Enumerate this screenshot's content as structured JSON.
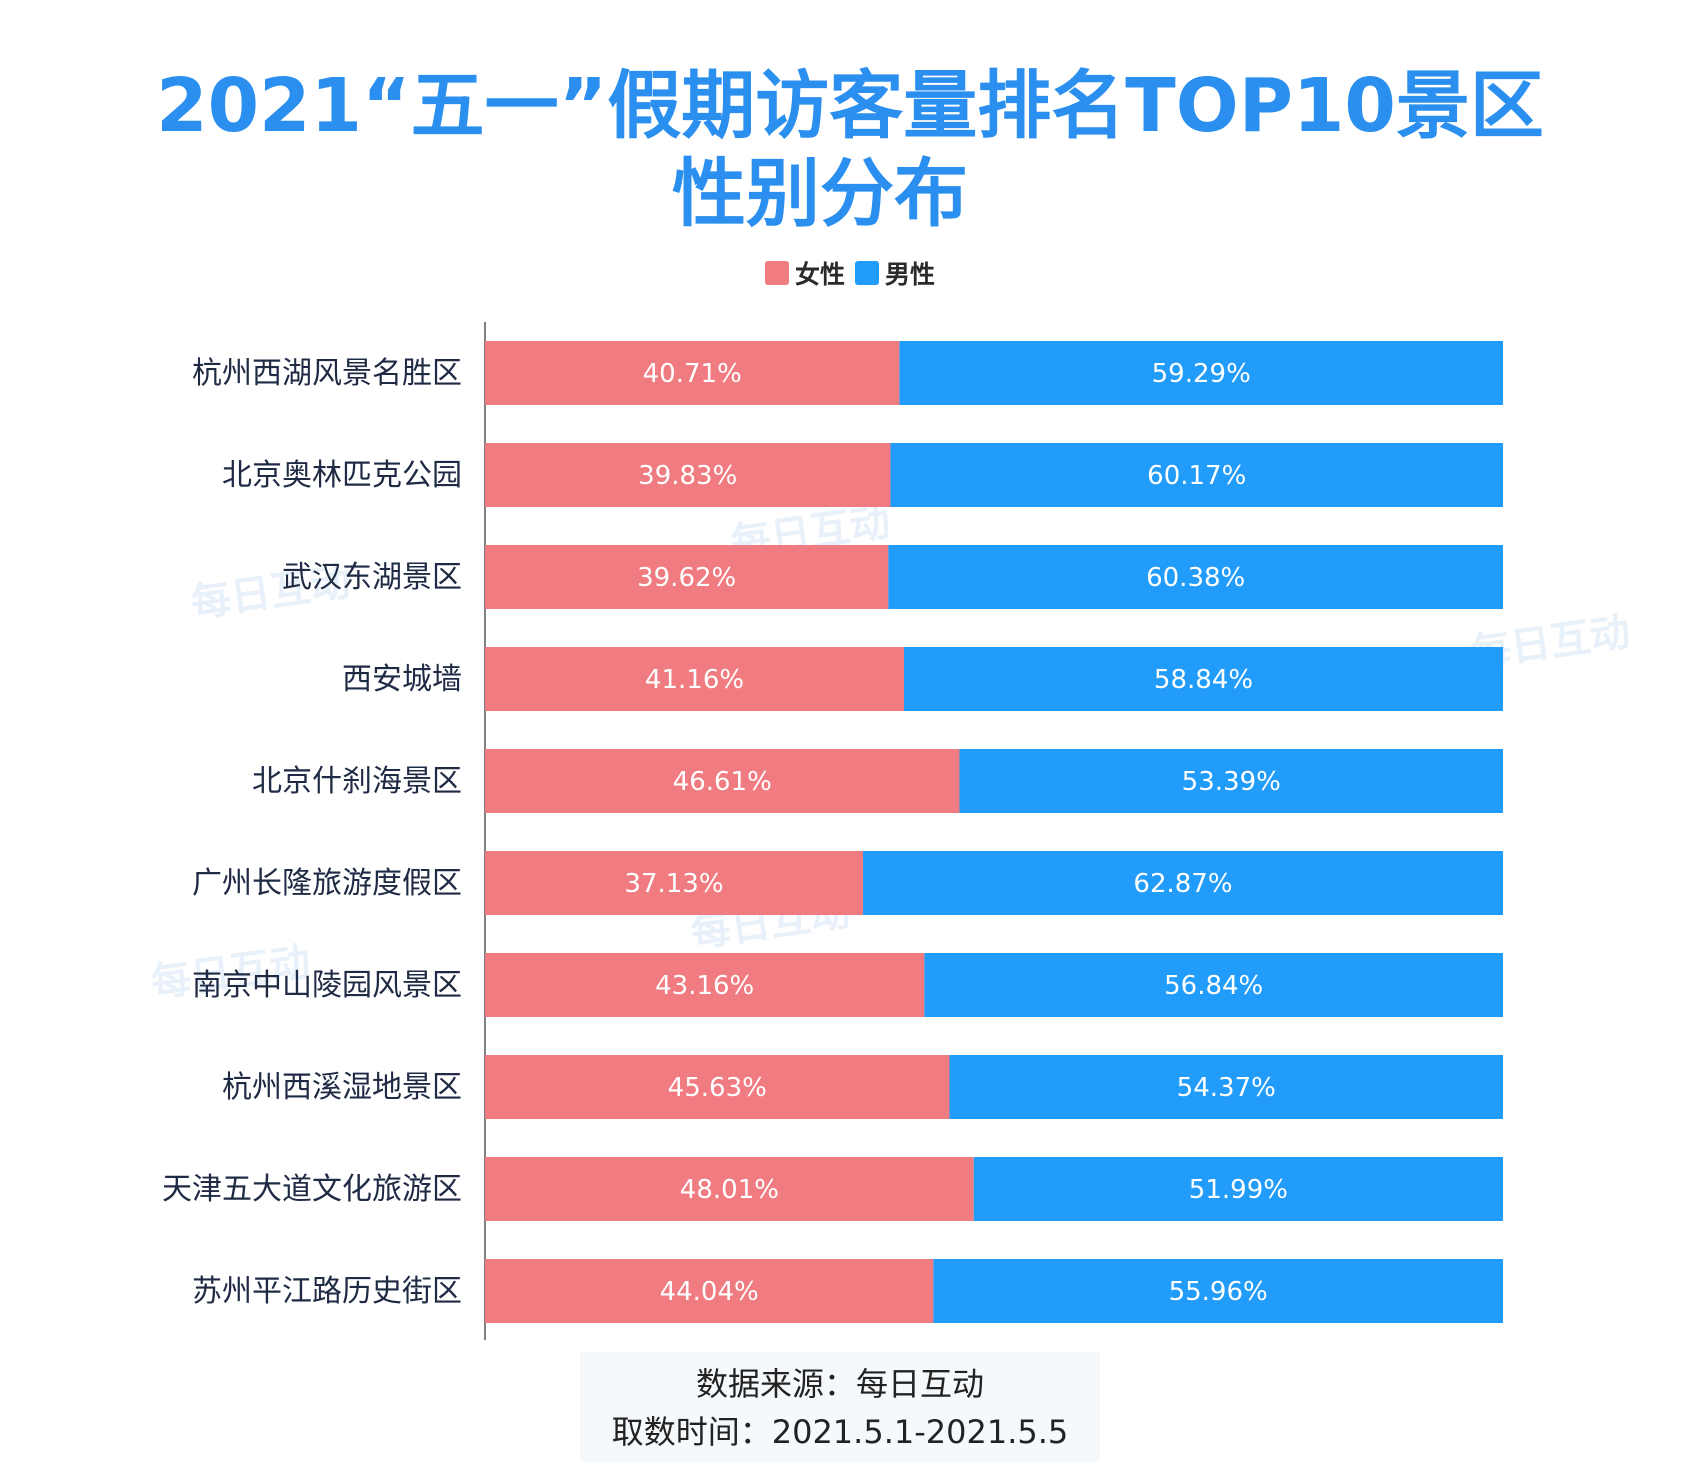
{
  "title": {
    "line1": "2021“五一”假期访客量排名TOP10景区",
    "line2": "性别分布"
  },
  "colors": {
    "female": "#f07b80",
    "male": "#229cfb",
    "axis": "#555555"
  },
  "legend": [
    {
      "key": "female",
      "label": "女性",
      "color": "#f07b80"
    },
    {
      "key": "male",
      "label": "男性",
      "color": "#229cfb"
    }
  ],
  "chart_data": {
    "type": "bar",
    "orientation": "horizontal",
    "stacked": true,
    "categories": [
      "杭州西湖风景名胜区",
      "北京奥林匹克公园",
      "武汉东湖景区",
      "西安城墙",
      "北京什刹海景区",
      "广州长隆旅游度假区",
      "南京中山陵园风景区",
      "杭州西溪湿地景区",
      "天津五大道文化旅游区",
      "苏州平江路历史街区"
    ],
    "series": [
      {
        "name": "女性",
        "values": [
          40.71,
          39.83,
          39.62,
          41.16,
          46.61,
          37.13,
          43.16,
          45.63,
          48.01,
          44.04
        ],
        "labels": [
          "40.71%",
          "39.83%",
          "39.62%",
          "41.16%",
          "46.61%",
          "37.13%",
          "43.16%",
          "45.63%",
          "48.01%",
          "44.04%"
        ]
      },
      {
        "name": "男性",
        "values": [
          59.29,
          60.17,
          60.38,
          58.84,
          53.39,
          62.87,
          56.84,
          54.37,
          51.99,
          55.96
        ],
        "labels": [
          "59.29%",
          "60.17%",
          "60.38%",
          "58.84%",
          "53.39%",
          "62.87%",
          "56.84%",
          "54.37%",
          "51.99%",
          "55.96%"
        ]
      }
    ],
    "xlim": [
      0,
      100
    ],
    "legend_position": "top-center",
    "grid": false
  },
  "footer": {
    "source": "数据来源：每日互动",
    "period": "取数时间：2021.5.1-2021.5.5"
  },
  "watermark": "每日互动"
}
